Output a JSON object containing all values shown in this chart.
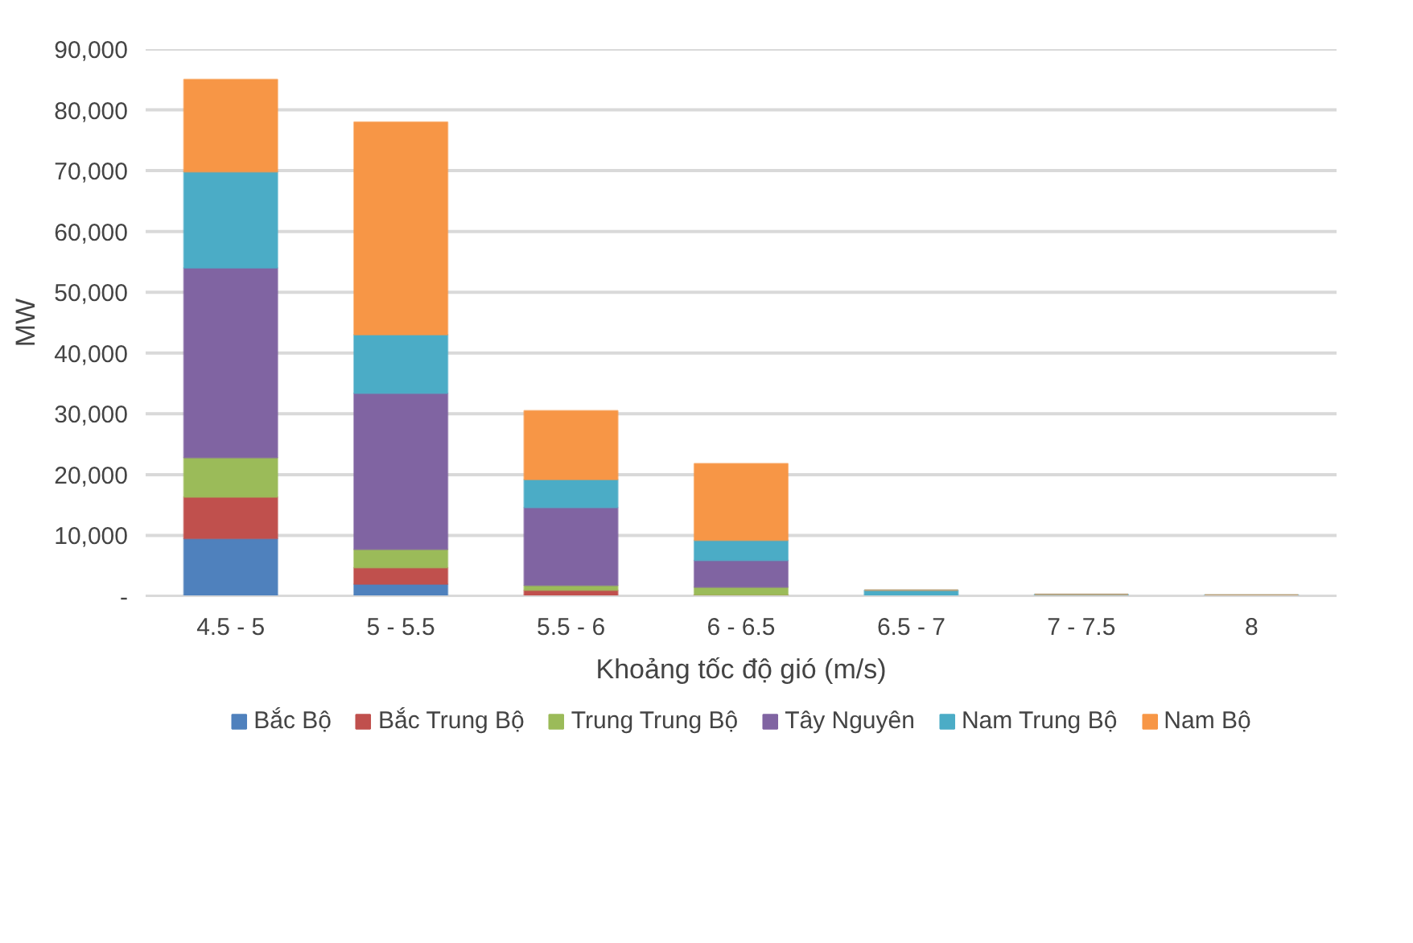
{
  "chart_data": {
    "type": "bar",
    "stacked": true,
    "xlabel": "Khoảng tốc độ gió (m/s)",
    "ylabel": "MW",
    "categories": [
      "4.5 - 5",
      "5 - 5.5",
      "5.5 - 6",
      "6 - 6.5",
      "6.5 - 7",
      "7 - 7.5",
      "8"
    ],
    "series": [
      {
        "name": "Bắc Bộ",
        "color": "#4f81bd",
        "values": [
          9500,
          2000,
          null,
          0,
          0,
          0,
          0
        ]
      },
      {
        "name": "Bắc Trung Bộ",
        "color": "#c0504d",
        "values": [
          6800,
          2700,
          1000,
          200,
          0,
          0,
          0
        ]
      },
      {
        "name": "Trung Trung Bộ",
        "color": "#9bbb59",
        "values": [
          6500,
          3000,
          800,
          1300,
          0,
          0,
          0
        ]
      },
      {
        "name": "Tây Nguyên",
        "color": "#8064a2",
        "values": [
          31200,
          25700,
          12800,
          4400,
          0,
          0,
          0
        ]
      },
      {
        "name": "Nam Trung Bộ",
        "color": "#4bacc6",
        "values": [
          15800,
          9600,
          4600,
          3300,
          1000,
          300,
          200
        ]
      },
      {
        "name": "Nam Bộ",
        "color": "#f79646",
        "values": [
          15200,
          35000,
          11300,
          12600,
          0,
          0,
          0
        ]
      }
    ],
    "ylim": [
      0,
      90000
    ],
    "yticks": [
      {
        "value": 0,
        "label": "-"
      },
      {
        "value": 10000,
        "label": "10,000"
      },
      {
        "value": 20000,
        "label": "20,000"
      },
      {
        "value": 30000,
        "label": "30,000"
      },
      {
        "value": 40000,
        "label": "40,000"
      },
      {
        "value": 50000,
        "label": "50,000"
      },
      {
        "value": 60000,
        "label": "60,000"
      },
      {
        "value": 70000,
        "label": "70,000"
      },
      {
        "value": 80000,
        "label": "80,000"
      },
      {
        "value": 90000,
        "label": "90,000"
      }
    ],
    "grid": "y",
    "legend": "bottom"
  }
}
